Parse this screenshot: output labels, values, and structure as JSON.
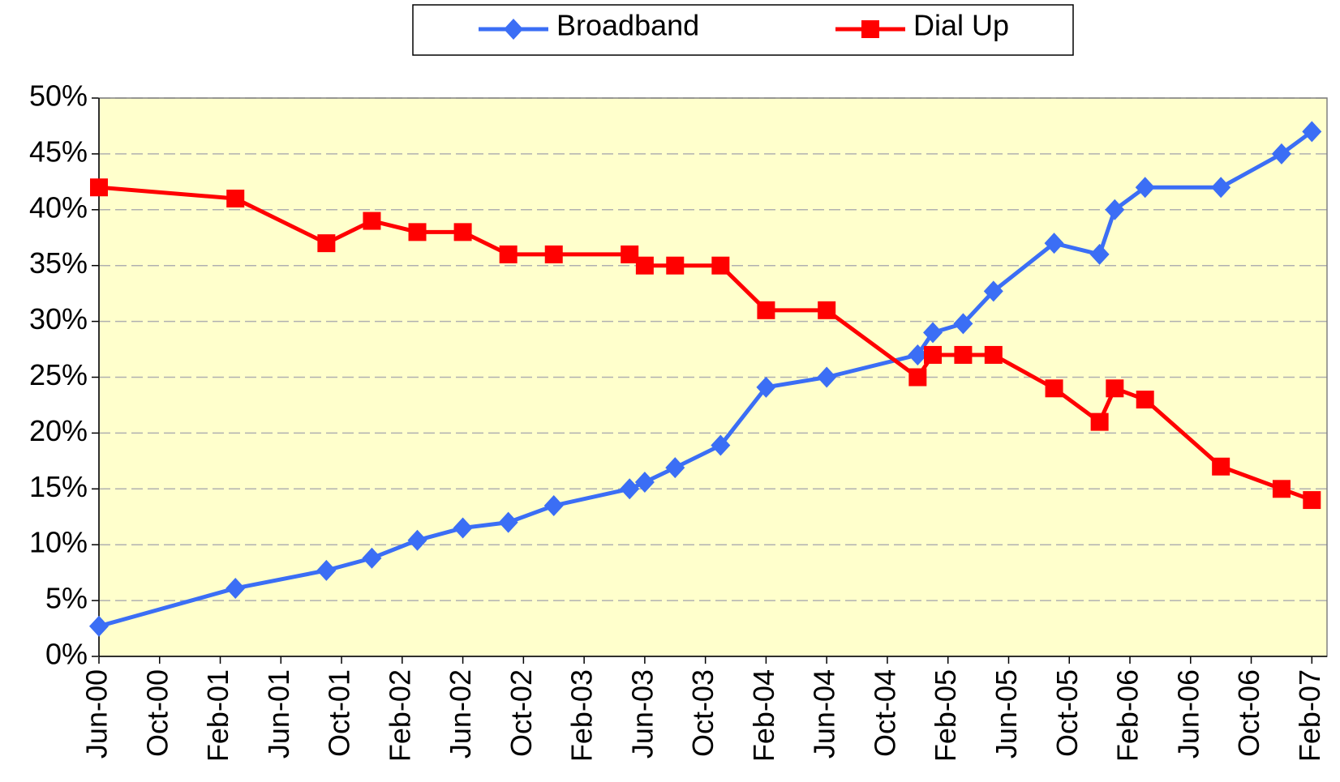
{
  "chart_data": {
    "type": "line",
    "x": [
      "2000-06",
      "2001-03",
      "2001-09",
      "2001-12",
      "2002-03",
      "2002-06",
      "2002-09",
      "2002-12",
      "2003-05",
      "2003-06",
      "2003-08",
      "2003-11",
      "2004-02",
      "2004-06",
      "2004-12",
      "2005-01",
      "2005-03",
      "2005-05",
      "2005-09",
      "2005-12",
      "2006-01",
      "2006-03",
      "2006-08",
      "2006-12",
      "2007-02"
    ],
    "series": [
      {
        "name": "Broadband",
        "color": "#3b6ef5",
        "marker": "diamond",
        "values": [
          2.7,
          6.1,
          7.7,
          8.8,
          10.4,
          11.5,
          12,
          13.5,
          15,
          15.6,
          16.9,
          18.9,
          24.1,
          25,
          27,
          29,
          29.8,
          32.7,
          37,
          36,
          40,
          42,
          42,
          45,
          47
        ]
      },
      {
        "name": "Dial Up",
        "color": "#ff0000",
        "marker": "square",
        "values": [
          42,
          41,
          37,
          39,
          38,
          38,
          36,
          36,
          36,
          35,
          35,
          35,
          31,
          31,
          25,
          27,
          27,
          27,
          24,
          21,
          24,
          23,
          17,
          15,
          14
        ]
      }
    ],
    "xlim": [
      "2000-06",
      "2007-03"
    ],
    "xticks": [
      {
        "value": "2000-06",
        "label": "Jun-00"
      },
      {
        "value": "2000-10",
        "label": "Oct-00"
      },
      {
        "value": "2001-02",
        "label": "Feb-01"
      },
      {
        "value": "2001-06",
        "label": "Jun-01"
      },
      {
        "value": "2001-10",
        "label": "Oct-01"
      },
      {
        "value": "2002-02",
        "label": "Feb-02"
      },
      {
        "value": "2002-06",
        "label": "Jun-02"
      },
      {
        "value": "2002-10",
        "label": "Oct-02"
      },
      {
        "value": "2003-02",
        "label": "Feb-03"
      },
      {
        "value": "2003-06",
        "label": "Jun-03"
      },
      {
        "value": "2003-10",
        "label": "Oct-03"
      },
      {
        "value": "2004-02",
        "label": "Feb-04"
      },
      {
        "value": "2004-06",
        "label": "Jun-04"
      },
      {
        "value": "2004-10",
        "label": "Oct-04"
      },
      {
        "value": "2005-02",
        "label": "Feb-05"
      },
      {
        "value": "2005-06",
        "label": "Jun-05"
      },
      {
        "value": "2005-10",
        "label": "Oct-05"
      },
      {
        "value": "2006-02",
        "label": "Feb-06"
      },
      {
        "value": "2006-06",
        "label": "Jun-06"
      },
      {
        "value": "2006-10",
        "label": "Oct-06"
      },
      {
        "value": "2007-02",
        "label": "Feb-07"
      }
    ],
    "ylim": [
      0,
      50
    ],
    "yticks": [
      {
        "value": 0,
        "label": "0%"
      },
      {
        "value": 5,
        "label": "5%"
      },
      {
        "value": 10,
        "label": "10%"
      },
      {
        "value": 15,
        "label": "15%"
      },
      {
        "value": 20,
        "label": "20%"
      },
      {
        "value": 25,
        "label": "25%"
      },
      {
        "value": 30,
        "label": "30%"
      },
      {
        "value": 35,
        "label": "35%"
      },
      {
        "value": 40,
        "label": "40%"
      },
      {
        "value": 45,
        "label": "45%"
      },
      {
        "value": 50,
        "label": "50%"
      }
    ],
    "grid": true,
    "legend": "top",
    "plot_background": "#ffffcc"
  }
}
